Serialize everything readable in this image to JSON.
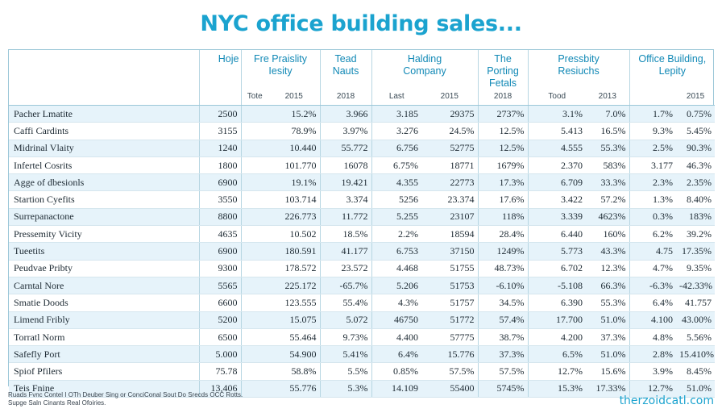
{
  "title": "NYC office building sales...",
  "columns": [
    {
      "label": "",
      "sub": []
    },
    {
      "label": "Hoje",
      "sub": []
    },
    {
      "label": "Fre Praislity\nIesity",
      "sub": [
        "Tote",
        "2015"
      ]
    },
    {
      "label": "Tead\nNauts",
      "sub": [
        "2018"
      ]
    },
    {
      "label": "Halding\nCompany",
      "sub": [
        "Last",
        "2015"
      ]
    },
    {
      "label": "The Porting\nFetals",
      "sub": [
        "2018"
      ]
    },
    {
      "label": "Pressbity\nResiuchs",
      "sub": [
        "Tood",
        "2013"
      ]
    },
    {
      "label": "Office Building,\nLepity",
      "sub": [
        "",
        "2015"
      ]
    }
  ],
  "rows": [
    [
      "Pacher Lmatite",
      "2500",
      "",
      "15.2%",
      "3.966",
      "3.185",
      "29375",
      "2737%",
      "3.1%",
      "7.0%",
      "1.7%",
      "0.75%"
    ],
    [
      "Caffi Cardints",
      "3155",
      "",
      "78.9%",
      "3.97%",
      "3.276",
      "24.5%",
      "12.5%",
      "5.413",
      "16.5%",
      "9.3%",
      "5.45%"
    ],
    [
      "Midrinal Vlaity",
      "1240",
      "",
      "10.440",
      "55.772",
      "6.756",
      "52775",
      "12.5%",
      "4.555",
      "55.3%",
      "2.5%",
      "90.3%"
    ],
    [
      "Infertel Cosrits",
      "1800",
      "",
      "101.770",
      "16078",
      "6.75%",
      "18771",
      "1679%",
      "2.370",
      "583%",
      "3.177",
      "46.3%"
    ],
    [
      "Agge of dbesionls",
      "6900",
      "",
      "19.1%",
      "19.421",
      "4.355",
      "22773",
      "17.3%",
      "6.709",
      "33.3%",
      "2.3%",
      "2.35%"
    ],
    [
      "Startion Cyefits",
      "3550",
      "",
      "103.714",
      "3.374",
      "5256",
      "23.374",
      "17.6%",
      "3.422",
      "57.2%",
      "1.3%",
      "8.40%"
    ],
    [
      "Surrepanactone",
      "8800",
      "",
      "226.773",
      "11.772",
      "5.255",
      "23107",
      "118%",
      "3.339",
      "4623%",
      "0.3%",
      "183%"
    ],
    [
      "Pressemity Vicity",
      "4635",
      "",
      "10.502",
      "18.5%",
      "2.2%",
      "18594",
      "28.4%",
      "6.440",
      "160%",
      "6.2%",
      "39.2%"
    ],
    [
      "Tueetits",
      "6900",
      "",
      "180.591",
      "41.177",
      "6.753",
      "37150",
      "1249%",
      "5.773",
      "43.3%",
      "4.75",
      "17.35%"
    ],
    [
      "Peudvae Pribty",
      "9300",
      "",
      "178.572",
      "23.572",
      "4.468",
      "51755",
      "48.73%",
      "6.702",
      "12.3%",
      "4.7%",
      "9.35%"
    ],
    [
      "Carntal Nore",
      "5565",
      "",
      "225.172",
      "-65.7%",
      "5.206",
      "51753",
      "-6.10%",
      "-5.108",
      "66.3%",
      "-6.3%",
      "-42.33%"
    ],
    [
      "Smatie Doods",
      "6600",
      "",
      "123.555",
      "55.4%",
      "4.3%",
      "51757",
      "34.5%",
      "6.390",
      "55.3%",
      "6.4%",
      "41.757"
    ],
    [
      "Limend Fribly",
      "5200",
      "",
      "15.075",
      "5.072",
      "46750",
      "51772",
      "57.4%",
      "17.700",
      "51.0%",
      "4.100",
      "43.00%"
    ],
    [
      "Torratl Norm",
      "6500",
      "",
      "55.464",
      "9.73%",
      "4.400",
      "57775",
      "38.7%",
      "4.200",
      "37.3%",
      "4.8%",
      "5.56%"
    ],
    [
      "Safefly Port",
      "5.000",
      "",
      "54.900",
      "5.41%",
      "6.4%",
      "15.776",
      "37.3%",
      "6.5%",
      "51.0%",
      "2.8%",
      "15.410%"
    ],
    [
      "Spiof Pfilers",
      "75.78",
      "",
      "58.8%",
      "5.5%",
      "0.85%",
      "57.5%",
      "57.5%",
      "12.7%",
      "15.6%",
      "3.9%",
      "8.45%"
    ],
    [
      "Teis Fnine",
      "13,406",
      "",
      "55.776",
      "5.3%",
      "14.109",
      "55400",
      "5745%",
      "15.3%",
      "17.33%",
      "12.7%",
      "51.0%"
    ]
  ],
  "footer_note": "Ruads Fvnc Contel I OTh Deuber Sing or ConciConal Sout Do Srecds OCC Rotts.\nSupge Saln Cinants Real Ofoiries.",
  "brand": "therzoidcatl.com",
  "colors": {
    "title": "#1ba3cf",
    "header_text": "#1289b6",
    "stripe": "#e6f3fa",
    "border": "#9cc7d8"
  }
}
